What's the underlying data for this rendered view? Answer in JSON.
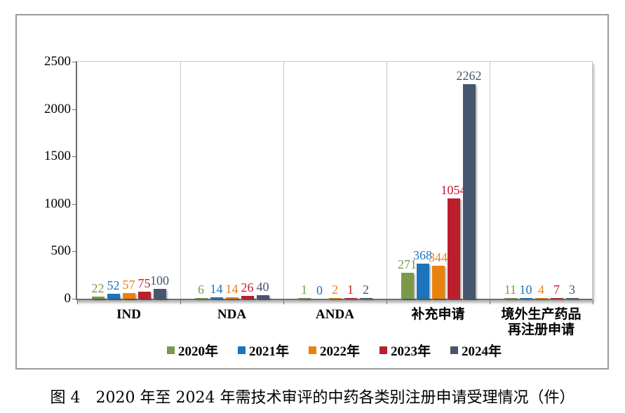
{
  "caption": "图 4　2020 年至 2024 年需技术审评的中药各类别注册申请受理情况（件）",
  "chart_data": {
    "type": "bar",
    "title": "",
    "categories": [
      "IND",
      "NDA",
      "ANDA",
      "补充申请",
      "境外生产药品\n再注册申请"
    ],
    "series": [
      {
        "name": "2020年",
        "color": "#7B9A48",
        "values": [
          22,
          6,
          1,
          271,
          11
        ]
      },
      {
        "name": "2021年",
        "color": "#1B74BC",
        "values": [
          52,
          14,
          0,
          368,
          10
        ]
      },
      {
        "name": "2022年",
        "color": "#E8820E",
        "values": [
          57,
          14,
          2,
          344,
          4
        ]
      },
      {
        "name": "2023年",
        "color": "#BB1E2C",
        "values": [
          75,
          26,
          1,
          1054,
          7
        ]
      },
      {
        "name": "2024年",
        "color": "#46566E",
        "values": [
          100,
          40,
          2,
          2262,
          3
        ]
      }
    ],
    "xlabel": "",
    "ylabel": "",
    "ylim": [
      0,
      2500
    ],
    "yticks": [
      0,
      500,
      1000,
      1500,
      2000,
      2500
    ],
    "grid": false,
    "legend_position": "bottom"
  }
}
